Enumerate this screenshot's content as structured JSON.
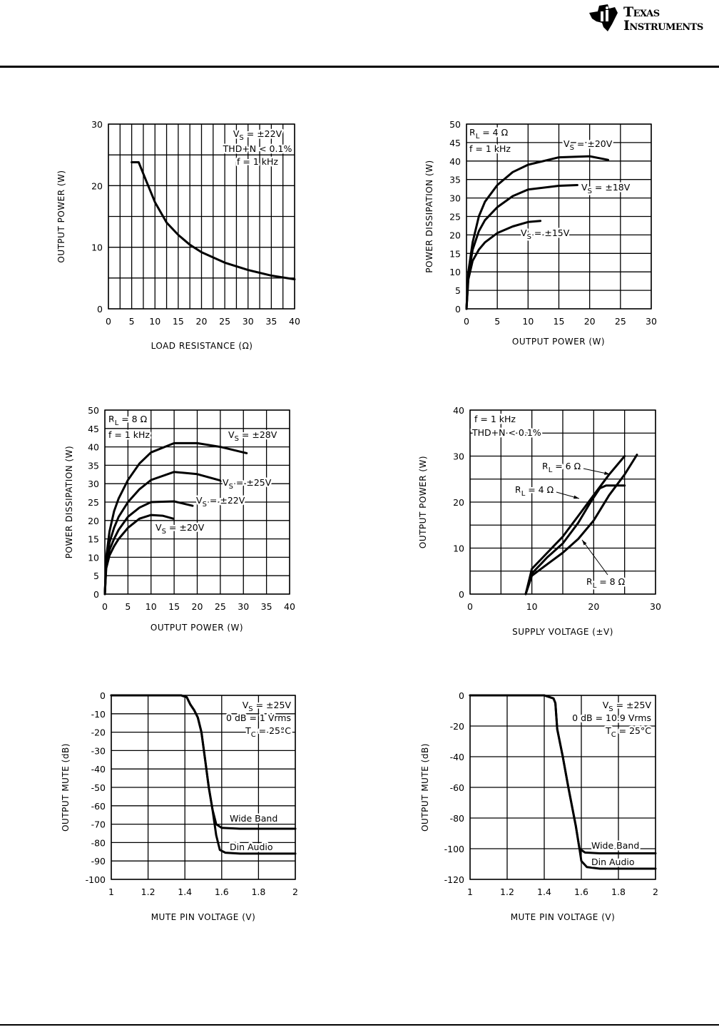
{
  "header": {
    "logo": {
      "line1": "Texas",
      "line2": "Instruments"
    }
  },
  "chart_data": [
    {
      "type": "line",
      "xlabel": "LOAD RESISTANCE (Ω)",
      "ylabel": "OUTPUT POWER (W)",
      "xlim": [
        0,
        40
      ],
      "ylim": [
        0,
        30
      ],
      "xticks": [
        0,
        5,
        10,
        15,
        20,
        25,
        30,
        35,
        40
      ],
      "yticks": [
        0,
        10,
        20,
        30
      ],
      "xgrid_step": 2.5,
      "ygrid_step": 5,
      "grid": true,
      "annotations": [
        {
          "base": "V",
          "sub": "S",
          "text": " = ±22V"
        },
        {
          "base": "THD+N < 0.1%",
          "sub": "",
          "text": ""
        },
        {
          "base": "f = 1 kHz",
          "sub": "",
          "text": ""
        }
      ],
      "series": [
        {
          "values": [
            [
              5,
              23.8
            ],
            [
              6.5,
              23.8
            ],
            [
              8,
              21
            ],
            [
              10,
              17.3
            ],
            [
              12.5,
              14
            ],
            [
              15,
              12
            ],
            [
              17.5,
              10.4
            ],
            [
              20,
              9.2
            ],
            [
              25,
              7.5
            ],
            [
              30,
              6.3
            ],
            [
              35,
              5.4
            ],
            [
              40,
              4.8
            ]
          ]
        }
      ]
    },
    {
      "type": "line",
      "xlabel": "OUTPUT POWER (W)",
      "ylabel": "POWER DISSIPATION (W)",
      "xlim": [
        0,
        30
      ],
      "ylim": [
        0,
        50
      ],
      "xticks": [
        0,
        5,
        10,
        15,
        20,
        25,
        30
      ],
      "yticks": [
        0,
        5,
        10,
        15,
        20,
        25,
        30,
        35,
        40,
        45,
        50
      ],
      "xgrid_step": 5,
      "ygrid_step": 5,
      "grid": true,
      "annotations": [
        {
          "base": "R",
          "sub": "L",
          "text": " = 4 Ω"
        },
        {
          "base": "f = 1 kHz",
          "sub": "",
          "text": ""
        }
      ],
      "series": [
        {
          "name": {
            "base": "V",
            "sub": "S",
            "text": " = ±20V"
          },
          "values": [
            [
              0,
              0
            ],
            [
              0.3,
              10
            ],
            [
              1,
              18
            ],
            [
              2,
              25
            ],
            [
              3,
              29
            ],
            [
              5,
              33.5
            ],
            [
              7.5,
              37
            ],
            [
              10,
              39
            ],
            [
              15,
              41
            ],
            [
              20,
              41.3
            ],
            [
              23,
              40.3
            ]
          ]
        },
        {
          "name": {
            "base": "V",
            "sub": "S",
            "text": " = ±18V"
          },
          "values": [
            [
              0,
              0
            ],
            [
              0.3,
              9
            ],
            [
              1,
              16
            ],
            [
              2,
              21
            ],
            [
              3,
              24
            ],
            [
              5,
              27.5
            ],
            [
              7.5,
              30.5
            ],
            [
              10,
              32.3
            ],
            [
              15,
              33.3
            ],
            [
              18,
              33.5
            ]
          ]
        },
        {
          "name": {
            "base": "V",
            "sub": "S",
            "text": " = ±15V"
          },
          "values": [
            [
              0,
              0
            ],
            [
              0.3,
              8
            ],
            [
              1,
              13
            ],
            [
              2,
              16
            ],
            [
              3,
              18
            ],
            [
              5,
              20.5
            ],
            [
              7.5,
              22.3
            ],
            [
              10,
              23.5
            ],
            [
              12,
              23.8
            ]
          ]
        }
      ]
    },
    {
      "type": "line",
      "xlabel": "OUTPUT POWER (W)",
      "ylabel": "POWER DISSIPATION (W)",
      "xlim": [
        0,
        40
      ],
      "ylim": [
        0,
        50
      ],
      "xticks": [
        0,
        5,
        10,
        15,
        20,
        25,
        30,
        35,
        40
      ],
      "yticks": [
        0,
        5,
        10,
        15,
        20,
        25,
        30,
        35,
        40,
        45,
        50
      ],
      "xgrid_step": 5,
      "ygrid_step": 5,
      "grid": true,
      "annotations": [
        {
          "base": "R",
          "sub": "L",
          "text": " = 8 Ω"
        },
        {
          "base": "f = 1 kHz",
          "sub": "",
          "text": ""
        }
      ],
      "series": [
        {
          "name": {
            "base": "V",
            "sub": "S",
            "text": " = ±28V"
          },
          "values": [
            [
              0,
              0
            ],
            [
              0.3,
              10
            ],
            [
              1,
              17
            ],
            [
              2,
              22.5
            ],
            [
              3,
              26
            ],
            [
              5,
              31
            ],
            [
              7.5,
              35.5
            ],
            [
              10,
              38.5
            ],
            [
              15,
              41
            ],
            [
              20,
              41
            ],
            [
              25,
              40
            ],
            [
              30.7,
              38.3
            ]
          ]
        },
        {
          "name": {
            "base": "V",
            "sub": "S",
            "text": " = ±25V"
          },
          "values": [
            [
              0,
              0
            ],
            [
              0.3,
              9
            ],
            [
              1,
              14
            ],
            [
              2,
              18
            ],
            [
              3,
              21
            ],
            [
              5,
              25
            ],
            [
              7.5,
              28.5
            ],
            [
              10,
              31
            ],
            [
              15,
              33.2
            ],
            [
              20,
              32.6
            ],
            [
              25.2,
              30.8
            ]
          ]
        },
        {
          "name": {
            "base": "V",
            "sub": "S",
            "text": " = ±22V"
          },
          "values": [
            [
              0,
              0
            ],
            [
              0.3,
              8
            ],
            [
              1,
              12
            ],
            [
              2,
              15
            ],
            [
              3,
              17.5
            ],
            [
              5,
              21
            ],
            [
              7.5,
              23.5
            ],
            [
              10,
              25
            ],
            [
              15,
              25.2
            ],
            [
              19,
              24
            ]
          ]
        },
        {
          "name": {
            "base": "V",
            "sub": "S",
            "text": " = ±20V"
          },
          "values": [
            [
              0,
              0
            ],
            [
              0.3,
              7
            ],
            [
              1,
              10.5
            ],
            [
              2,
              13
            ],
            [
              3,
              15
            ],
            [
              5,
              18
            ],
            [
              7.5,
              20.5
            ],
            [
              10,
              21.5
            ],
            [
              12.5,
              21.3
            ],
            [
              14.8,
              20.5
            ]
          ]
        }
      ]
    },
    {
      "type": "line",
      "xlabel": "SUPPLY VOLTAGE (±V)",
      "ylabel": "OUTPUT POWER (W)",
      "xlim": [
        0,
        30
      ],
      "ylim": [
        0,
        40
      ],
      "xticks": [
        0,
        10,
        20,
        30
      ],
      "yticks": [
        0,
        10,
        20,
        30,
        40
      ],
      "xgrid_step": 5,
      "ygrid_step": 5,
      "grid": true,
      "annotations": [
        {
          "base": "f = 1 kHz",
          "sub": "",
          "text": ""
        },
        {
          "base": "THD+N < 0.1%",
          "sub": "",
          "text": ""
        }
      ],
      "series": [
        {
          "name": {
            "base": "R",
            "sub": "L",
            "text": " = 6 Ω"
          },
          "values": [
            [
              9,
              0
            ],
            [
              10,
              5.5
            ],
            [
              12.5,
              9
            ],
            [
              15,
              12.5
            ],
            [
              17.5,
              17
            ],
            [
              20,
              21.5
            ],
            [
              22.5,
              26
            ],
            [
              25,
              30
            ]
          ]
        },
        {
          "name": {
            "base": "R",
            "sub": "L",
            "text": " = 4 Ω"
          },
          "values": [
            [
              9,
              0
            ],
            [
              10,
              4.5
            ],
            [
              12.5,
              8
            ],
            [
              15,
              11
            ],
            [
              17.5,
              15.5
            ],
            [
              19.5,
              20
            ],
            [
              21,
              23
            ],
            [
              22,
              23.6
            ],
            [
              25,
              23.6
            ]
          ]
        },
        {
          "name": {
            "base": "R",
            "sub": "L",
            "text": " = 8 Ω"
          },
          "values": [
            [
              9,
              0
            ],
            [
              10,
              4
            ],
            [
              12.5,
              6.5
            ],
            [
              15,
              9
            ],
            [
              17.5,
              12
            ],
            [
              20,
              16
            ],
            [
              22.5,
              21.5
            ],
            [
              25,
              26
            ],
            [
              27,
              30.3
            ]
          ]
        }
      ]
    },
    {
      "type": "line",
      "xlabel": "MUTE PIN VOLTAGE (V)",
      "ylabel": "OUTPUT MUTE (dB)",
      "xlim": [
        1,
        2
      ],
      "ylim": [
        -100,
        0
      ],
      "xticks": [
        1,
        1.2,
        1.4,
        1.6,
        1.8,
        2
      ],
      "yticks": [
        0,
        -10,
        -20,
        -30,
        -40,
        -50,
        -60,
        -70,
        -80,
        -90,
        -100
      ],
      "xgrid_step": 0.2,
      "ygrid_step": 10,
      "grid": true,
      "annotations": [
        {
          "base": "V",
          "sub": "S",
          "text": " = ±25V"
        },
        {
          "base": "0 dB = 1 Vrms",
          "sub": "",
          "text": ""
        },
        {
          "base": "T",
          "sub": "C",
          "text": " = 25°C"
        }
      ],
      "series": [
        {
          "name": {
            "base": "Wide Band",
            "sub": "",
            "text": ""
          },
          "values": [
            [
              1,
              0
            ],
            [
              1.38,
              0
            ],
            [
              1.41,
              -1
            ],
            [
              1.43,
              -5
            ],
            [
              1.45,
              -8
            ],
            [
              1.47,
              -12
            ],
            [
              1.49,
              -20
            ],
            [
              1.51,
              -35
            ],
            [
              1.53,
              -50
            ],
            [
              1.55,
              -62
            ],
            [
              1.57,
              -70
            ],
            [
              1.6,
              -72
            ],
            [
              1.7,
              -72.5
            ],
            [
              2,
              -72.5
            ]
          ]
        },
        {
          "name": {
            "base": "Din Audio",
            "sub": "",
            "text": ""
          },
          "values": [
            [
              1,
              0
            ],
            [
              1.38,
              0
            ],
            [
              1.41,
              -1
            ],
            [
              1.43,
              -5
            ],
            [
              1.45,
              -8
            ],
            [
              1.47,
              -12
            ],
            [
              1.49,
              -20
            ],
            [
              1.51,
              -35
            ],
            [
              1.53,
              -50
            ],
            [
              1.55,
              -62
            ],
            [
              1.57,
              -76
            ],
            [
              1.59,
              -84
            ],
            [
              1.62,
              -85.5
            ],
            [
              1.7,
              -86
            ],
            [
              2,
              -86
            ]
          ]
        }
      ]
    },
    {
      "type": "line",
      "xlabel": "MUTE PIN VOLTAGE (V)",
      "ylabel": "OUTPUT MUTE (dB)",
      "xlim": [
        1,
        2
      ],
      "ylim": [
        -120,
        0
      ],
      "xticks": [
        1,
        1.2,
        1.4,
        1.6,
        1.8,
        2
      ],
      "yticks": [
        0,
        -20,
        -40,
        -60,
        -80,
        -100,
        -120
      ],
      "xgrid_step": 0.2,
      "ygrid_step": 20,
      "grid": true,
      "annotations": [
        {
          "base": "V",
          "sub": "S",
          "text": " = ±25V"
        },
        {
          "base": "0 dB = 10.9 Vrms",
          "sub": "",
          "text": ""
        },
        {
          "base": "T",
          "sub": "C",
          "text": " = 25°C"
        }
      ],
      "series": [
        {
          "name": {
            "base": "Wide Band",
            "sub": "",
            "text": ""
          },
          "values": [
            [
              1,
              0
            ],
            [
              1.4,
              0
            ],
            [
              1.45,
              -2
            ],
            [
              1.46,
              -5
            ],
            [
              1.47,
              -22
            ],
            [
              1.5,
              -40
            ],
            [
              1.53,
              -60
            ],
            [
              1.57,
              -85
            ],
            [
              1.59,
              -100
            ],
            [
              1.62,
              -102.5
            ],
            [
              1.7,
              -103
            ],
            [
              2,
              -103
            ]
          ]
        },
        {
          "name": {
            "base": "Din Audio",
            "sub": "",
            "text": ""
          },
          "values": [
            [
              1,
              0
            ],
            [
              1.4,
              0
            ],
            [
              1.45,
              -2
            ],
            [
              1.46,
              -5
            ],
            [
              1.47,
              -22
            ],
            [
              1.5,
              -40
            ],
            [
              1.53,
              -60
            ],
            [
              1.57,
              -85
            ],
            [
              1.59,
              -100
            ],
            [
              1.6,
              -108
            ],
            [
              1.63,
              -112
            ],
            [
              1.7,
              -113
            ],
            [
              2,
              -113
            ]
          ]
        }
      ]
    }
  ]
}
